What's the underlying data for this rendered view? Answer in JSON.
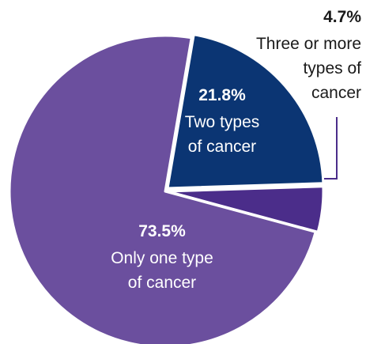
{
  "chart_data": {
    "type": "pie",
    "title": "",
    "slices": [
      {
        "value": 73.5,
        "value_label": "73.5%",
        "label_lines": [
          "Only one type",
          "of cancer"
        ],
        "color": "#6b4f9e"
      },
      {
        "value": 21.8,
        "value_label": "21.8%",
        "label_lines": [
          "Two types",
          "of cancer"
        ],
        "color": "#0b3573"
      },
      {
        "value": 4.7,
        "value_label": "4.7%",
        "label_lines": [
          "Three or more",
          "types of",
          "cancer"
        ],
        "color": "#4b2d8a"
      }
    ]
  }
}
